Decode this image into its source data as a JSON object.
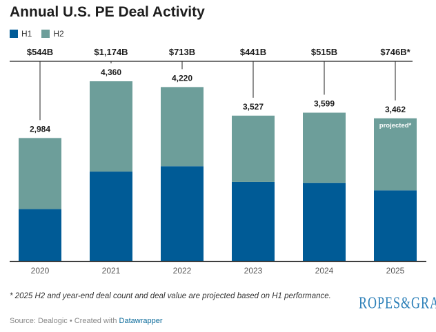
{
  "title": "Annual U.S. PE Deal Activity",
  "legend": [
    {
      "name": "H1",
      "color": "#005b96"
    },
    {
      "name": "H2",
      "color": "#6d9e9a"
    }
  ],
  "chart_data": {
    "type": "bar",
    "stacked": true,
    "categories": [
      "2020",
      "2021",
      "2022",
      "2023",
      "2024",
      "2025"
    ],
    "series": [
      {
        "name": "H1",
        "color": "#005b96",
        "values": [
          1260,
          2170,
          2300,
          1922,
          1893,
          1714
        ]
      },
      {
        "name": "H2",
        "color": "#6d9e9a",
        "values": [
          1724,
          2190,
          1920,
          1605,
          1706,
          1748
        ]
      }
    ],
    "totals": [
      2984,
      4360,
      4220,
      3527,
      3599,
      3462
    ],
    "total_labels": [
      "2,984",
      "4,360",
      "4,220",
      "3,527",
      "3,599",
      "3,462"
    ],
    "deal_values": [
      "$544B",
      "$1,174B",
      "$713B",
      "$441B",
      "$515B",
      "$746B*"
    ],
    "bar_annotations": [
      "",
      "",
      "",
      "",
      "",
      "projected*"
    ],
    "ylim": [
      0,
      4500
    ],
    "grid": false,
    "legend_position": "top-left"
  },
  "footnote": "* 2025 H2 and year-end deal count and deal value are projected based on H1 performance.",
  "source": {
    "prefix": "Source: Dealogic • Created with ",
    "link": "Datawrapper"
  },
  "logo_text": "ROPES&GRAY"
}
